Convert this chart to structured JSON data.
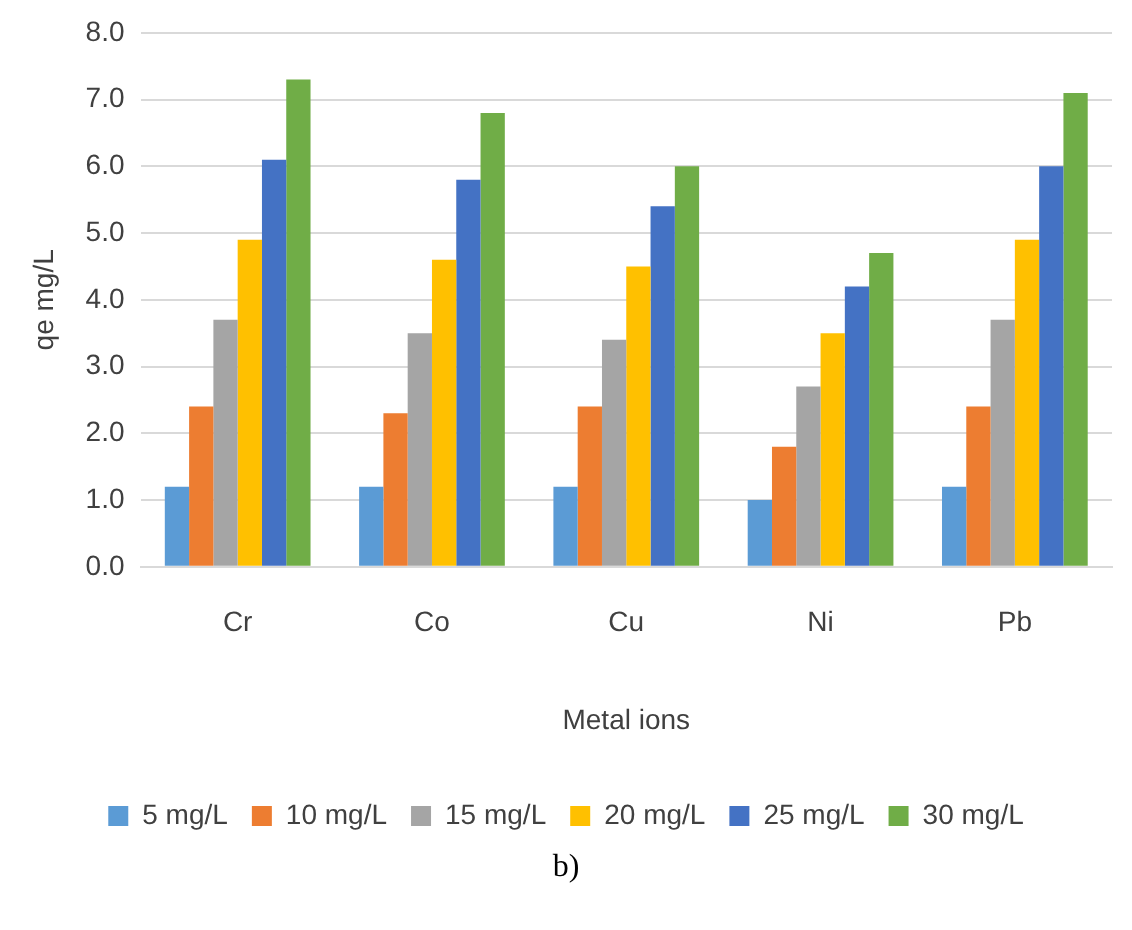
{
  "chart_data": {
    "type": "bar",
    "xlabel": "Metal ions",
    "ylabel": "qe mg/L",
    "categories": [
      "Cr",
      "Co",
      "Cu",
      "Ni",
      "Pb"
    ],
    "series": [
      {
        "name": "5 mg/L",
        "color": "#5b9bd5",
        "values": [
          1.2,
          1.2,
          1.2,
          1.0,
          1.2
        ]
      },
      {
        "name": "10 mg/L",
        "color": "#ed7d31",
        "values": [
          2.4,
          2.3,
          2.4,
          1.8,
          2.4
        ]
      },
      {
        "name": "15 mg/L",
        "color": "#a5a5a5",
        "values": [
          3.7,
          3.5,
          3.4,
          2.7,
          3.7
        ]
      },
      {
        "name": "20 mg/L",
        "color": "#ffc000",
        "values": [
          4.9,
          4.6,
          4.5,
          3.5,
          4.9
        ]
      },
      {
        "name": "25 mg/L",
        "color": "#4472c4",
        "values": [
          6.1,
          5.8,
          5.4,
          4.2,
          6.0
        ]
      },
      {
        "name": "30 mg/L",
        "color": "#70ad47",
        "values": [
          7.3,
          6.8,
          6.0,
          4.7,
          7.1
        ]
      }
    ],
    "ylim": [
      0,
      8
    ],
    "yticks": [
      {
        "value": 0,
        "label": "0.0"
      },
      {
        "value": 1,
        "label": "1.0"
      },
      {
        "value": 2,
        "label": "2.0"
      },
      {
        "value": 3,
        "label": "3.0"
      },
      {
        "value": 4,
        "label": "4.0"
      },
      {
        "value": 5,
        "label": "5.0"
      },
      {
        "value": 6,
        "label": "6.0"
      },
      {
        "value": 7,
        "label": "7.0"
      },
      {
        "value": 8,
        "label": "8.0"
      }
    ],
    "grid": "y",
    "legend": "bottom",
    "annotations": [
      "b)"
    ]
  }
}
